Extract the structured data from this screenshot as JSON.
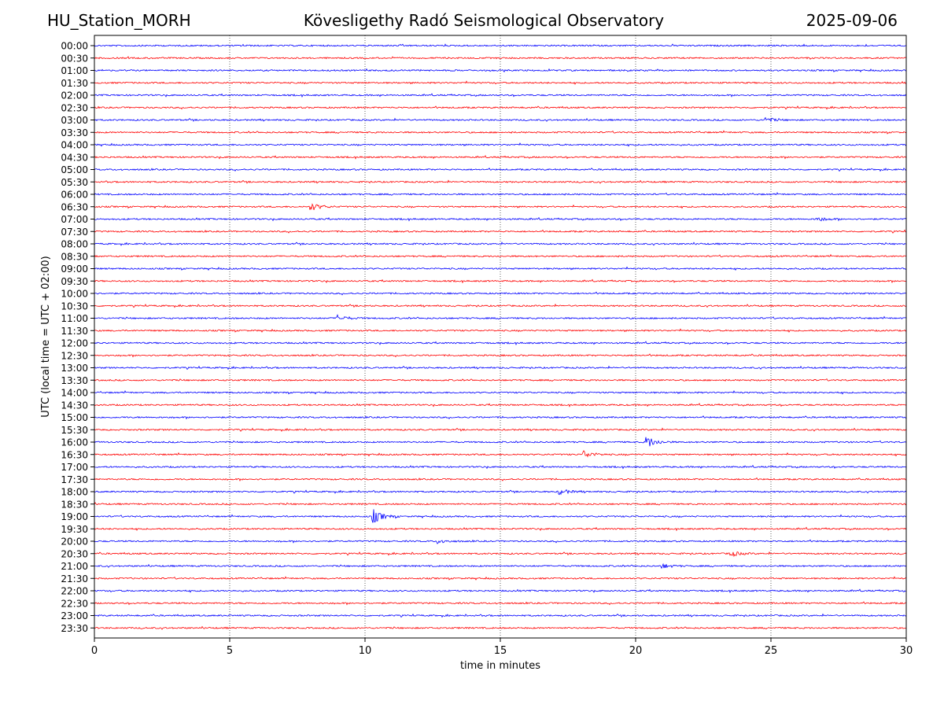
{
  "header": {
    "station": "HU_Station_MORH",
    "observatory": "Kövesligethy Radó Seismological Observatory",
    "date": "2025-09-06"
  },
  "chart_data": {
    "type": "line",
    "title": "Kövesligethy Radó Seismological Observatory",
    "xlabel": "time in minutes",
    "ylabel": "UTC (local time = UTC + 02:00)",
    "xlim": [
      0,
      30
    ],
    "x_ticks": [
      "0",
      "5",
      "10",
      "15",
      "20",
      "25",
      "30"
    ],
    "grid": "vertical dotted lines at each 5 minutes",
    "colors": {
      "even_traces": "#0000ff",
      "odd_traces": "#ff0000",
      "axis": "#000000"
    },
    "trace_labels": [
      "00:00",
      "00:30",
      "01:00",
      "01:30",
      "02:00",
      "02:30",
      "03:00",
      "03:30",
      "04:00",
      "04:30",
      "05:00",
      "05:30",
      "06:00",
      "06:30",
      "07:00",
      "07:30",
      "08:00",
      "08:30",
      "09:00",
      "09:30",
      "10:00",
      "10:30",
      "11:00",
      "11:30",
      "12:00",
      "12:30",
      "13:00",
      "13:30",
      "14:00",
      "14:30",
      "15:00",
      "15:30",
      "16:00",
      "16:30",
      "17:00",
      "17:30",
      "18:00",
      "18:30",
      "19:00",
      "19:30",
      "20:00",
      "20:30",
      "21:00",
      "21:30",
      "22:00",
      "22:30",
      "23:00",
      "23:30"
    ],
    "events": [
      {
        "trace": "03:00",
        "minute": 24.8,
        "amplitude": 0.35
      },
      {
        "trace": "06:30",
        "minute": 8.0,
        "amplitude": 0.55
      },
      {
        "trace": "07:00",
        "minute": 26.7,
        "amplitude": 0.3
      },
      {
        "trace": "11:00",
        "minute": 9.0,
        "amplitude": 0.4
      },
      {
        "trace": "16:00",
        "minute": 20.4,
        "amplitude": 0.9
      },
      {
        "trace": "16:30",
        "minute": 18.1,
        "amplitude": 0.5
      },
      {
        "trace": "18:00",
        "minute": 17.2,
        "amplitude": 0.4
      },
      {
        "trace": "19:00",
        "minute": 10.3,
        "amplitude": 1.0
      },
      {
        "trace": "20:00",
        "minute": 12.7,
        "amplitude": 0.3
      },
      {
        "trace": "20:30",
        "minute": 23.5,
        "amplitude": 0.4
      },
      {
        "trace": "21:00",
        "minute": 21.0,
        "amplitude": 0.3
      }
    ]
  }
}
